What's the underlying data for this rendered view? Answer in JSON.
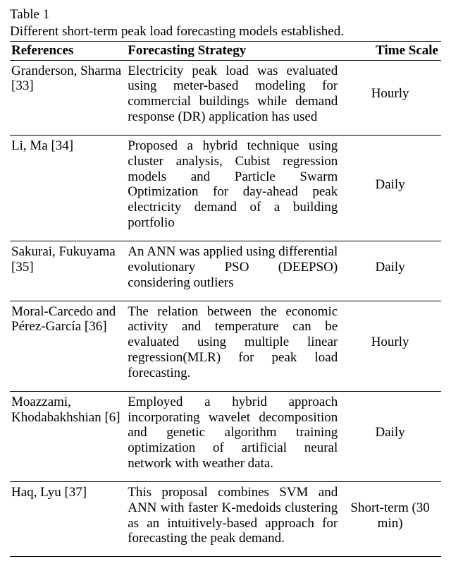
{
  "table": {
    "label": "Table 1",
    "caption": "Different short-term peak load forecasting models established.",
    "columns": [
      "References",
      "Forecasting Strategy",
      "Time Scale"
    ],
    "rows": [
      {
        "reference": "Granderson, Sharma [33]",
        "strategy": "Electricity peak load was evaluated using meter-based modeling for commercial buildings while demand response (DR) application has used",
        "timescale": "Hourly"
      },
      {
        "reference": "Li, Ma [34]",
        "strategy": "Proposed a hybrid technique using cluster analysis, Cubist regression models and Particle Swarm Optimization for day-ahead peak electricity demand of a building portfolio",
        "timescale": "Daily"
      },
      {
        "reference": "Sakurai, Fukuyama [35]",
        "strategy": "An ANN was applied using differential evolutionary PSO (DEEPSO) considering outliers",
        "timescale": "Daily"
      },
      {
        "reference": "Moral-Carcedo and Pérez-García [36]",
        "strategy": "The relation between the economic activity and temperature can be evaluated using multiple linear regression(MLR) for peak load forecasting.",
        "timescale": "Hourly"
      },
      {
        "reference": "Moazzami, Khodabakhshian [6]",
        "strategy": "Employed a hybrid approach incorporating wavelet decomposition and genetic algorithm training optimization of artificial neural network with weather data.",
        "timescale": "Daily"
      },
      {
        "reference": "Haq, Lyu [37]",
        "strategy": "This proposal combines SVM and ANN with faster K-medoids clustering as an intuitively-based approach for forecasting the peak demand.",
        "timescale": "Short-term (30 min)"
      }
    ]
  }
}
